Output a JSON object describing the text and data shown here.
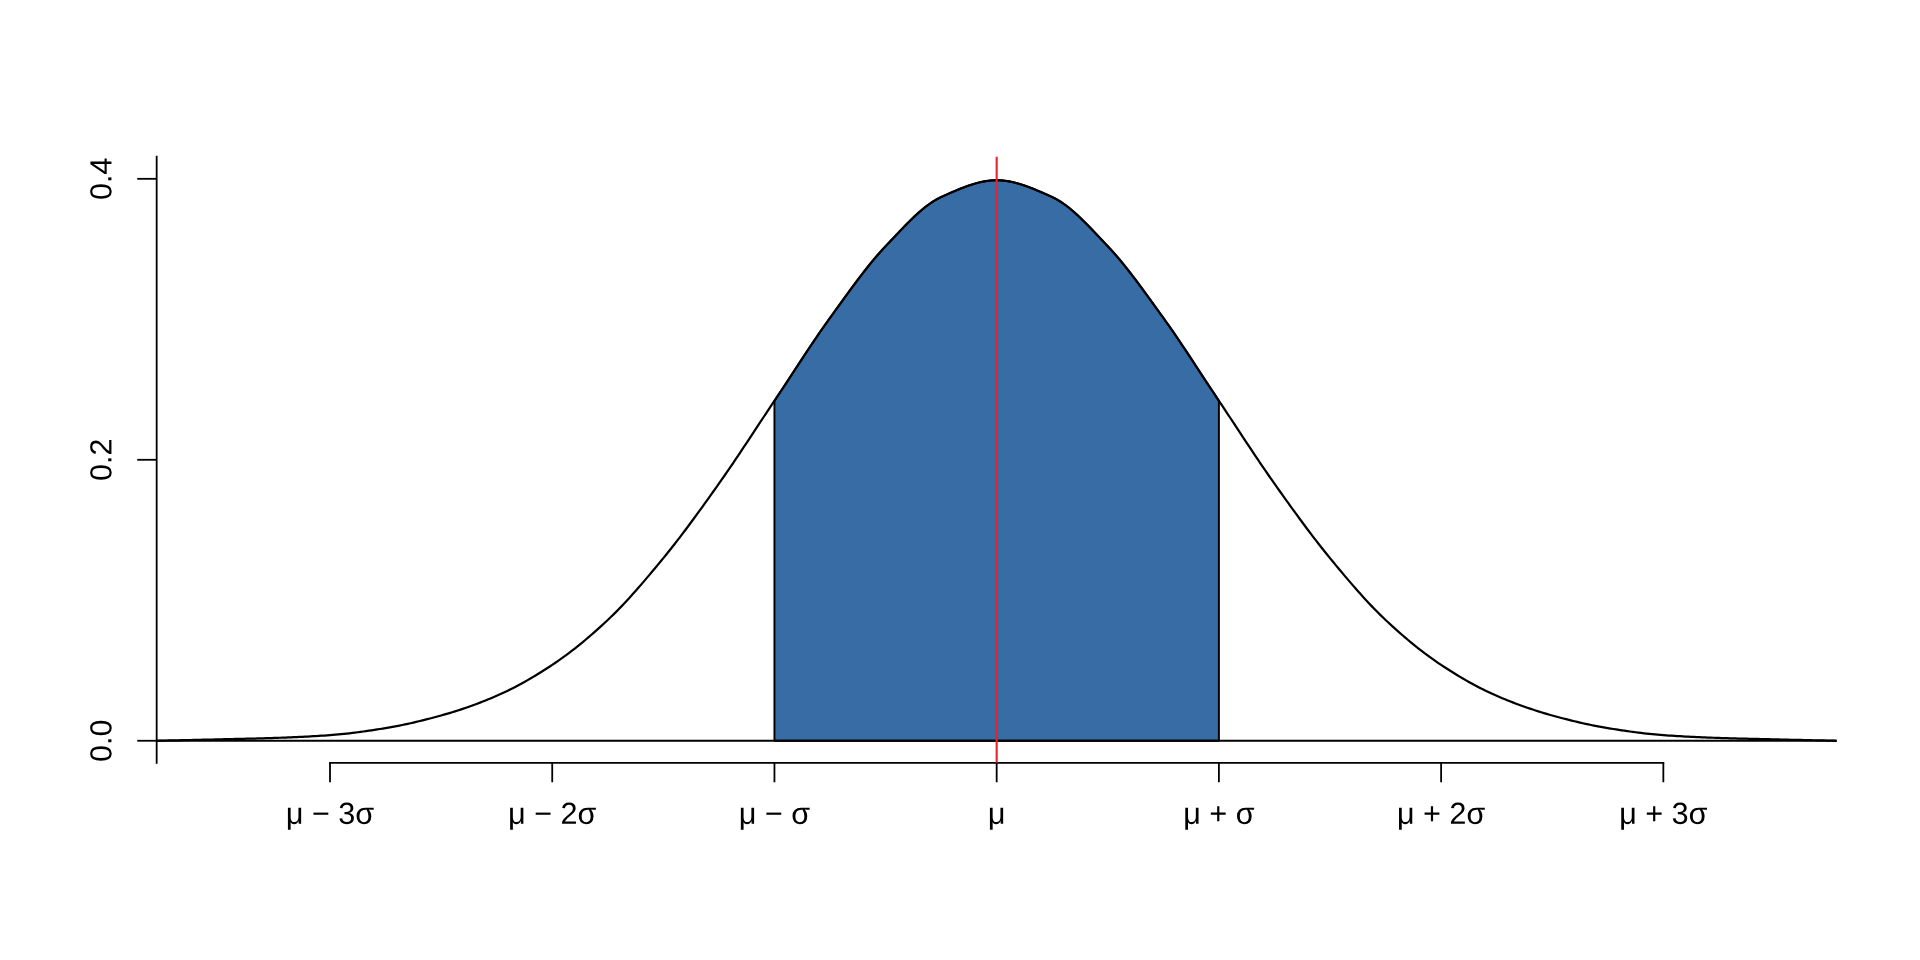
{
  "chart_data": {
    "type": "line",
    "xlim": [
      -3.78,
      3.78
    ],
    "ylim": [
      -0.0157,
      0.4157
    ],
    "xticks": [
      {
        "value": -3,
        "label": "μ − 3σ"
      },
      {
        "value": -2,
        "label": "μ − 2σ"
      },
      {
        "value": -1,
        "label": "μ − σ"
      },
      {
        "value": 0,
        "label": "μ"
      },
      {
        "value": 1,
        "label": "μ + σ"
      },
      {
        "value": 2,
        "label": "μ + 2σ"
      },
      {
        "value": 3,
        "label": "μ + 3σ"
      }
    ],
    "yticks": [
      {
        "value": 0,
        "label": "0.0"
      },
      0.2,
      0.4
    ],
    "grid": false,
    "legend": false,
    "series": [
      {
        "type": "area",
        "color": "#386ca5",
        "x": [
          -1,
          -0.75,
          -0.5,
          -0.25,
          0,
          0.25,
          0.5,
          0.75,
          1
        ],
        "values": [
          0.242,
          0.301,
          0.352,
          0.387,
          0.399,
          0.387,
          0.352,
          0.301,
          0.242
        ]
      },
      {
        "color": "#000000",
        "x": [
          -3.78,
          -3.5,
          -3.25,
          -3,
          -2.75,
          -2.5,
          -2.25,
          -2,
          -1.75,
          -1.5,
          -1.25,
          -1,
          -0.75,
          -0.5,
          -0.25,
          0,
          0.25,
          0.5,
          0.75,
          1,
          1.25,
          1.5,
          1.75,
          2,
          2.25,
          2.5,
          2.75,
          3,
          3.25,
          3.5,
          3.78
        ],
        "values": [
          0.0,
          0.001,
          0.002,
          0.004,
          0.009,
          0.018,
          0.032,
          0.054,
          0.086,
          0.13,
          0.183,
          0.242,
          0.301,
          0.352,
          0.387,
          0.399,
          0.387,
          0.352,
          0.301,
          0.242,
          0.183,
          0.13,
          0.086,
          0.054,
          0.032,
          0.018,
          0.009,
          0.004,
          0.002,
          0.001,
          0.0
        ]
      }
    ],
    "ref_lines": [
      {
        "axis": "y",
        "value": 0,
        "color": "#000000"
      },
      {
        "axis": "x",
        "value": 0,
        "color": "#e8212b"
      }
    ]
  }
}
